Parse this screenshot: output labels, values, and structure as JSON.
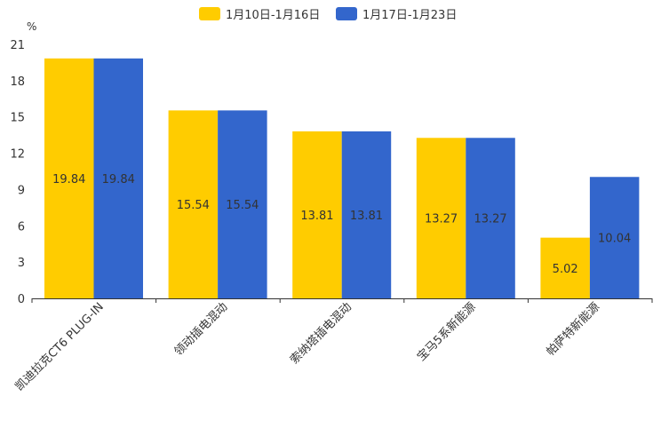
{
  "chart_data": {
    "type": "bar",
    "title": "",
    "xlabel": "",
    "ylabel": "%",
    "ylim": [
      0,
      21
    ],
    "yticks": [
      0,
      3,
      6,
      9,
      12,
      15,
      18,
      21
    ],
    "grid": false,
    "legend_position": "top",
    "categories": [
      "凯迪拉克CT6 PLUG-IN",
      "领动插电混动",
      "索纳塔插电混动",
      "宝马5系新能源",
      "帕萨特新能源"
    ],
    "series": [
      {
        "name": "1月10日-1月16日",
        "color": "#ffcc00",
        "values": [
          19.84,
          15.54,
          13.81,
          13.27,
          5.02
        ]
      },
      {
        "name": "1月17日-1月23日",
        "color": "#3366cc",
        "values": [
          19.84,
          15.54,
          13.81,
          13.27,
          10.04
        ]
      }
    ]
  }
}
